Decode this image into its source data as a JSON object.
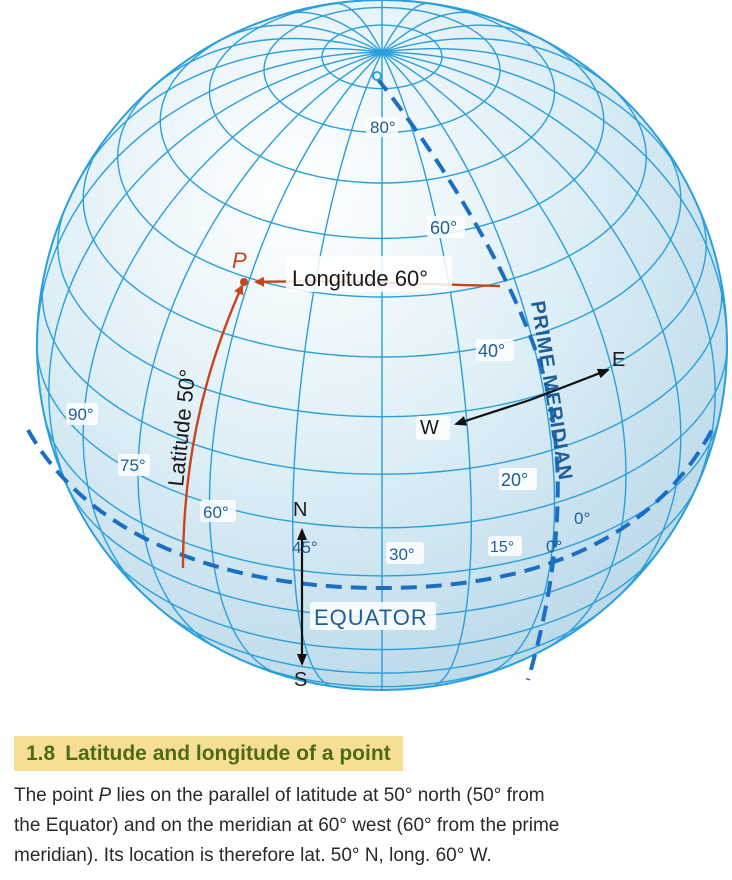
{
  "figure": {
    "labels": {
      "lat80": "80°",
      "lat60": "60°",
      "lat40": "40°",
      "lat20": "20°",
      "lon90": "90°",
      "lon75": "75°",
      "lon60": "60°",
      "lon45": "45°",
      "lon30": "30°",
      "lon15": "15°",
      "lon0": "0°",
      "lat0": "0°",
      "point": "P",
      "longitude": "Longitude 60°",
      "latitude": "Latitude 50°",
      "equator": "EQUATOR",
      "prime_meridian": "PRIME MERIDIAN",
      "north": "N",
      "south": "S",
      "east": "E",
      "west": "W"
    },
    "colors": {
      "globe_fill": "#d9ecf5",
      "grid_line": "#2a9fdc",
      "dashed_line": "#1b6fc2",
      "arrow_red": "#c9431b",
      "arrow_dark": "#111111"
    }
  },
  "caption": {
    "number": "1.8",
    "title": "Latitude and longitude of a point",
    "line1_a": "The point ",
    "line1_var": "P",
    "line1_b": " lies on the parallel of latitude at 50° north (50° from",
    "line2": "the Equator) and on the meridian at 60° west (60° from the prime",
    "line3": "meridian). Its location is therefore lat. 50° N, long. 60° W."
  }
}
